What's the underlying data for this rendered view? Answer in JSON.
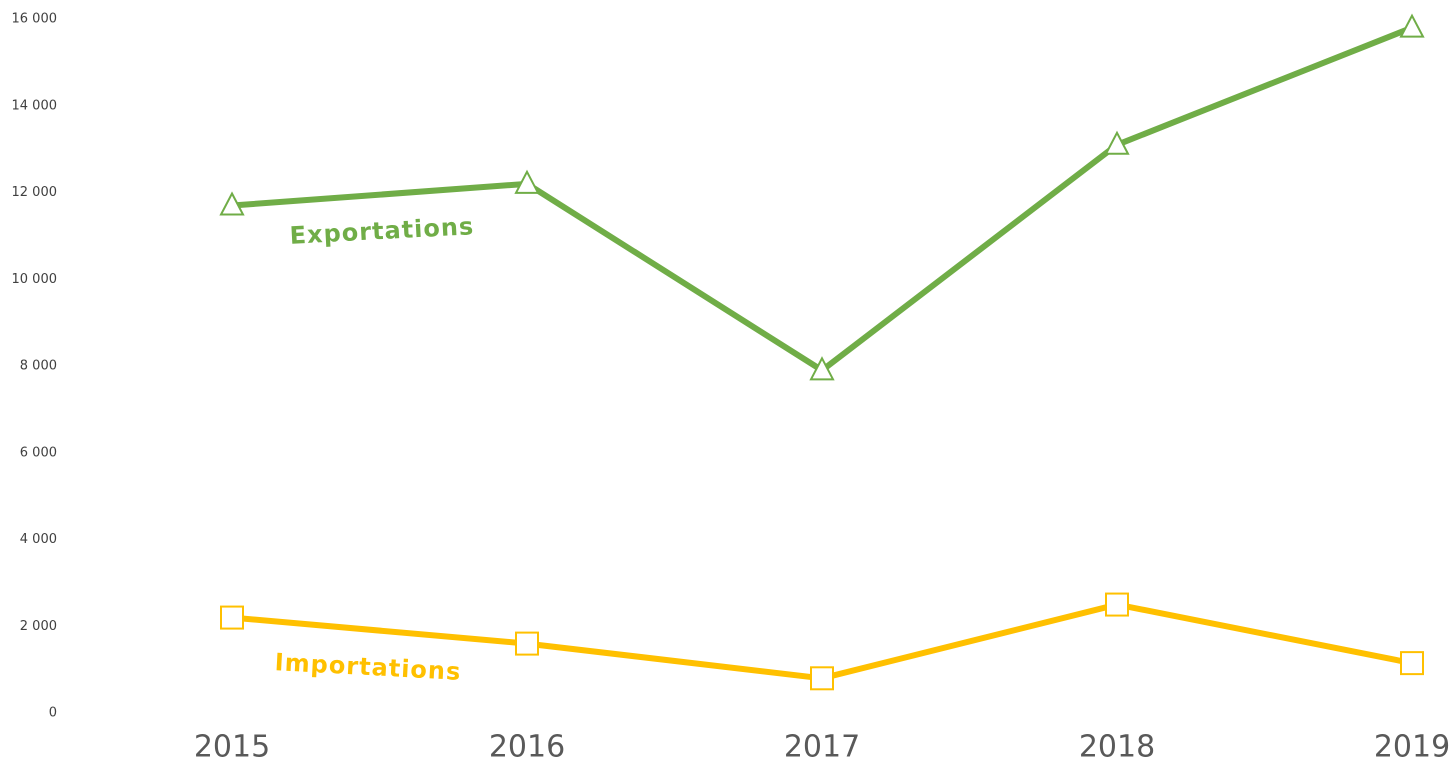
{
  "chart_data": {
    "type": "line",
    "categories": [
      "2015",
      "2016",
      "2017",
      "2018",
      "2019"
    ],
    "series": [
      {
        "name": "Exportations",
        "color": "#70ad47",
        "marker": "triangle",
        "values": [
          11700,
          12200,
          7900,
          13100,
          15800
        ]
      },
      {
        "name": "Importations",
        "color": "#ffc000",
        "marker": "square",
        "values": [
          2200,
          1600,
          800,
          2500,
          1150
        ]
      }
    ],
    "ylim": [
      0,
      16000
    ],
    "yticks": [
      0,
      {
        "value": 2000,
        "label": "2 000"
      },
      {
        "value": 4000,
        "label": "4 000"
      },
      {
        "value": 6000,
        "label": "6 000"
      },
      {
        "value": 8000,
        "label": "8 000"
      },
      {
        "value": 10000,
        "label": "10 000"
      },
      {
        "value": 12000,
        "label": "12 000"
      },
      {
        "value": 14000,
        "label": "14 000"
      },
      {
        "value": 16000,
        "label": "16 000"
      }
    ],
    "grid": false
  }
}
